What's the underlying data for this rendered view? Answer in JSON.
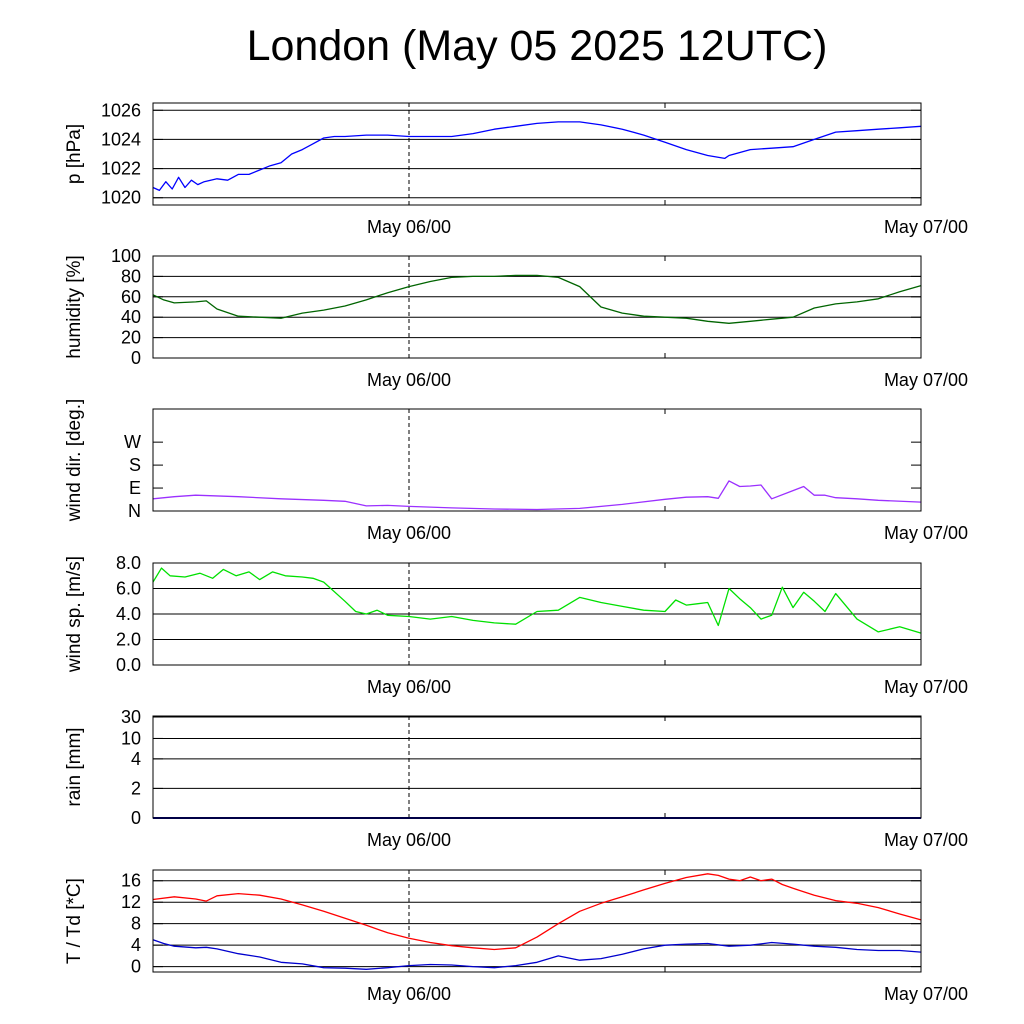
{
  "title": "London (May 05 2025 12UTC)",
  "chart_data": [
    {
      "type": "line",
      "ylabel": "p [hPa]",
      "xticks": [
        "May 06/00",
        "May 07/00"
      ],
      "x_range_hours": [
        0,
        36
      ],
      "ylim": [
        1019.5,
        1026.5
      ],
      "yticks": [
        1020,
        1022,
        1024,
        1026
      ],
      "grid": "horizontal",
      "series": [
        {
          "color": "#0000ff",
          "x": [
            0,
            0.3,
            0.6,
            0.9,
            1.2,
            1.5,
            1.8,
            2.1,
            2.4,
            3,
            3.5,
            4,
            4.5,
            5,
            5.5,
            6,
            6.5,
            7,
            7.5,
            8,
            8.5,
            9,
            10,
            11,
            12,
            13,
            14,
            15,
            16,
            17,
            18,
            19,
            20,
            21,
            22,
            23,
            24,
            25,
            26,
            26.8,
            27,
            28,
            29,
            30,
            31,
            32,
            33,
            34,
            35,
            36
          ],
          "y": [
            1020.7,
            1020.5,
            1021.1,
            1020.6,
            1021.4,
            1020.7,
            1021.2,
            1020.9,
            1021.1,
            1021.3,
            1021.2,
            1021.6,
            1021.6,
            1021.9,
            1022.2,
            1022.4,
            1023.0,
            1023.3,
            1023.7,
            1024.1,
            1024.2,
            1024.2,
            1024.3,
            1024.3,
            1024.2,
            1024.2,
            1024.2,
            1024.4,
            1024.7,
            1024.9,
            1025.1,
            1025.2,
            1025.2,
            1025.0,
            1024.7,
            1024.3,
            1023.8,
            1023.3,
            1022.9,
            1022.7,
            1022.9,
            1023.3,
            1023.4,
            1023.5,
            1024.0,
            1024.5,
            1024.6,
            1024.7,
            1024.8,
            1024.9
          ]
        }
      ]
    },
    {
      "type": "line",
      "ylabel": "humidity [%]",
      "xticks": [
        "May 06/00",
        "May 07/00"
      ],
      "x_range_hours": [
        0,
        36
      ],
      "ylim": [
        0,
        100
      ],
      "yticks": [
        0,
        20,
        40,
        60,
        80,
        100
      ],
      "grid": "horizontal",
      "series": [
        {
          "color": "#006400",
          "x": [
            0,
            0.5,
            1,
            2,
            2.5,
            3,
            4,
            5,
            6,
            7,
            8,
            9,
            10,
            11,
            12,
            13,
            14,
            15,
            16,
            17,
            18,
            19,
            20,
            21,
            22,
            23,
            24,
            25,
            26,
            27,
            28,
            29,
            30,
            31,
            32,
            33,
            34,
            35,
            36
          ],
          "y": [
            62,
            57,
            54,
            55,
            56,
            48,
            41,
            40,
            39,
            44,
            47,
            51,
            57,
            64,
            70,
            75,
            79,
            80,
            80,
            81,
            81,
            79,
            70,
            50,
            44,
            41,
            40,
            39,
            36,
            34,
            36,
            38,
            40,
            49,
            53,
            55,
            58,
            65,
            71
          ]
        }
      ]
    },
    {
      "type": "line",
      "ylabel": "wind dir. [deg.]",
      "xticks": [
        "May 06/00",
        "May 07/00"
      ],
      "x_range_hours": [
        0,
        36
      ],
      "ylim": [
        0,
        400
      ],
      "yticks": [
        "N",
        "E",
        "S",
        "W"
      ],
      "ytick_values": [
        0,
        90,
        180,
        270
      ],
      "grid": "none",
      "series": [
        {
          "color": "#9b30ff",
          "x": [
            0,
            1,
            2,
            4,
            6,
            8,
            9,
            10,
            11,
            12,
            14,
            16,
            18,
            20,
            22,
            24,
            25,
            26,
            26.5,
            27,
            27.5,
            28,
            28.5,
            29,
            30,
            30.5,
            31,
            31.5,
            32,
            33,
            34,
            36
          ],
          "y": [
            48,
            56,
            62,
            56,
            48,
            42,
            38,
            20,
            22,
            18,
            12,
            8,
            6,
            10,
            26,
            46,
            54,
            56,
            50,
            118,
            96,
            98,
            102,
            48,
            80,
            96,
            62,
            62,
            52,
            48,
            42,
            35
          ]
        }
      ]
    },
    {
      "type": "line",
      "ylabel": "wind sp. [m/s]",
      "xticks": [
        "May 06/00",
        "May 07/00"
      ],
      "x_range_hours": [
        0,
        36
      ],
      "ylim": [
        0,
        8
      ],
      "yticks": [
        "0.0",
        "2.0",
        "4.0",
        "6.0",
        "8.0"
      ],
      "ytick_values": [
        0,
        2,
        4,
        6,
        8
      ],
      "grid": "horizontal",
      "series": [
        {
          "color": "#00e000",
          "x": [
            0,
            0.4,
            0.8,
            1.5,
            2.2,
            2.8,
            3.3,
            3.9,
            4.5,
            5,
            5.6,
            6.2,
            7,
            7.5,
            8,
            9,
            9.5,
            10,
            10.5,
            11,
            12,
            13,
            14,
            15,
            16,
            17,
            18,
            19,
            20,
            21,
            22,
            23,
            24,
            24.5,
            25,
            25.5,
            26,
            26.5,
            27,
            27.5,
            28,
            28.5,
            29,
            29.5,
            30,
            30.5,
            31,
            31.5,
            32,
            33,
            34,
            35,
            36
          ],
          "y": [
            6.5,
            7.6,
            7.0,
            6.9,
            7.2,
            6.8,
            7.5,
            7.0,
            7.3,
            6.7,
            7.3,
            7.0,
            6.9,
            6.8,
            6.5,
            5.0,
            4.2,
            4.0,
            4.3,
            3.9,
            3.8,
            3.6,
            3.8,
            3.5,
            3.3,
            3.2,
            4.2,
            4.3,
            5.3,
            4.9,
            4.6,
            4.3,
            4.2,
            5.1,
            4.7,
            4.8,
            4.9,
            3.1,
            6.0,
            5.2,
            4.5,
            3.6,
            3.9,
            6.1,
            4.5,
            5.7,
            5.0,
            4.2,
            5.6,
            3.6,
            2.6,
            3.0,
            2.5
          ]
        }
      ]
    },
    {
      "type": "line",
      "ylabel": "rain [mm]",
      "xticks": [
        "May 06/00",
        "May 07/00"
      ],
      "x_range_hours": [
        0,
        36
      ],
      "ylim": [
        0,
        30
      ],
      "yticks": [
        "0",
        "2",
        "4",
        "10",
        "30"
      ],
      "ytick_values": [
        0,
        2,
        4,
        10,
        30
      ],
      "grid": "horizontal",
      "series": [
        {
          "color": "#00008b",
          "x": [
            0,
            36
          ],
          "y": [
            0,
            0
          ]
        }
      ]
    },
    {
      "type": "line",
      "ylabel": "T / Td [*C]",
      "xticks": [
        "May 06/00",
        "May 07/00"
      ],
      "x_range_hours": [
        0,
        36
      ],
      "ylim": [
        -1,
        18
      ],
      "yticks": [
        0,
        4,
        8,
        12,
        16
      ],
      "grid": "horizontal",
      "series": [
        {
          "color": "#ff0000",
          "x": [
            0,
            1,
            2,
            2.5,
            3,
            4,
            5,
            6,
            7,
            8,
            9,
            10,
            11,
            12,
            13,
            14,
            15,
            16,
            17,
            18,
            19,
            20,
            21,
            22,
            23,
            24,
            25,
            26,
            26.5,
            27,
            27.5,
            28,
            28.5,
            29,
            29.5,
            30,
            31,
            32,
            33,
            34,
            35,
            36
          ],
          "y": [
            12.5,
            13.0,
            12.6,
            12.2,
            13.2,
            13.6,
            13.3,
            12.6,
            11.5,
            10.3,
            9.0,
            7.7,
            6.3,
            5.3,
            4.5,
            3.9,
            3.5,
            3.2,
            3.5,
            5.5,
            8.0,
            10.3,
            11.8,
            13.0,
            14.3,
            15.5,
            16.6,
            17.3,
            17.0,
            16.3,
            16.0,
            16.7,
            16.0,
            16.3,
            15.3,
            14.6,
            13.3,
            12.3,
            11.8,
            11.0,
            9.8,
            8.7
          ]
        },
        {
          "color": "#0000cd",
          "x": [
            0,
            0.5,
            1,
            2,
            2.5,
            3,
            4,
            5,
            6,
            7,
            8,
            9,
            10,
            11,
            12,
            13,
            14,
            15,
            16,
            17,
            18,
            19,
            20,
            21,
            22,
            23,
            24,
            25,
            26,
            27,
            28,
            29,
            30,
            31,
            32,
            33,
            34,
            35,
            36
          ],
          "y": [
            5.0,
            4.3,
            3.8,
            3.5,
            3.6,
            3.3,
            2.4,
            1.8,
            0.8,
            0.5,
            -0.2,
            -0.3,
            -0.5,
            -0.2,
            0.2,
            0.4,
            0.3,
            0.0,
            -0.2,
            0.2,
            0.8,
            2.0,
            1.2,
            1.5,
            2.3,
            3.3,
            4.0,
            4.2,
            4.3,
            3.8,
            4.0,
            4.5,
            4.2,
            3.8,
            3.6,
            3.2,
            3.0,
            3.0,
            2.7
          ]
        }
      ]
    }
  ]
}
